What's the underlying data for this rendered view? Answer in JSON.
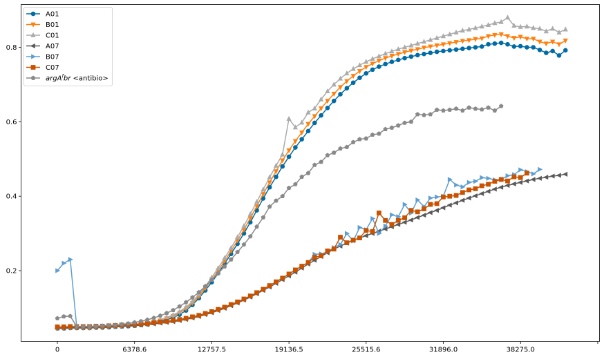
{
  "chart_data": {
    "type": "line",
    "title": "",
    "xlabel": "",
    "ylabel": "",
    "xlim": [
      -3000,
      44800
    ],
    "ylim": [
      0.01,
      0.915
    ],
    "grid": false,
    "legend_placement": "top-left",
    "x_ticks": [
      0,
      6378.6,
      12757.5,
      19136.5,
      25515.6,
      31896.0,
      38275.0
    ],
    "x_tick_labels": [
      "0",
      "6378.6",
      "12757.5",
      "19136.5",
      "25515.6",
      "31896.0",
      "38275.0"
    ],
    "y_ticks": [
      0.2,
      0.4,
      0.6,
      0.8
    ],
    "y_tick_labels": [
      "0.2",
      "0.4",
      "0.6",
      "0.8"
    ],
    "legend_prefix_italic": "argA",
    "legend_prefix_sup": "fbr",
    "series": [
      {
        "name": "A01",
        "color": "#006ba4",
        "marker": "circle",
        "values": [
          0.045,
          0.045,
          0.046,
          0.046,
          0.046,
          0.046,
          0.047,
          0.047,
          0.048,
          0.049,
          0.05,
          0.051,
          0.052,
          0.054,
          0.056,
          0.059,
          0.063,
          0.068,
          0.074,
          0.082,
          0.093,
          0.108,
          0.126,
          0.147,
          0.169,
          0.193,
          0.219,
          0.245,
          0.272,
          0.3,
          0.33,
          0.362,
          0.394,
          0.424,
          0.452,
          0.48,
          0.506,
          0.531,
          0.553,
          0.575,
          0.597,
          0.617,
          0.637,
          0.656,
          0.674,
          0.69,
          0.705,
          0.718,
          0.73,
          0.74,
          0.748,
          0.755,
          0.761,
          0.766,
          0.771,
          0.775,
          0.779,
          0.782,
          0.785,
          0.788,
          0.79,
          0.792,
          0.794,
          0.796,
          0.798,
          0.8,
          0.802,
          0.808,
          0.81,
          0.812,
          0.808,
          0.802,
          0.803,
          0.8,
          0.8,
          0.793,
          0.785,
          0.79,
          0.778,
          0.792
        ]
      },
      {
        "name": "B01",
        "color": "#ff800e",
        "marker": "triangle-down",
        "values": [
          0.046,
          0.046,
          0.047,
          0.047,
          0.047,
          0.047,
          0.048,
          0.048,
          0.049,
          0.05,
          0.051,
          0.053,
          0.054,
          0.056,
          0.059,
          0.062,
          0.066,
          0.072,
          0.078,
          0.087,
          0.098,
          0.113,
          0.131,
          0.153,
          0.176,
          0.2,
          0.226,
          0.253,
          0.281,
          0.31,
          0.341,
          0.373,
          0.406,
          0.437,
          0.467,
          0.496,
          0.523,
          0.548,
          0.571,
          0.594,
          0.615,
          0.636,
          0.656,
          0.675,
          0.693,
          0.709,
          0.723,
          0.736,
          0.747,
          0.756,
          0.764,
          0.771,
          0.777,
          0.782,
          0.787,
          0.791,
          0.795,
          0.799,
          0.802,
          0.805,
          0.808,
          0.811,
          0.814,
          0.817,
          0.819,
          0.822,
          0.824,
          0.83,
          0.833,
          0.835,
          0.83,
          0.825,
          0.828,
          0.823,
          0.823,
          0.815,
          0.81,
          0.815,
          0.808,
          0.818
        ]
      },
      {
        "name": "C01",
        "color": "#ababab",
        "marker": "triangle-up",
        "values": [
          0.047,
          0.047,
          0.048,
          0.048,
          0.048,
          0.048,
          0.049,
          0.049,
          0.05,
          0.051,
          0.052,
          0.054,
          0.056,
          0.058,
          0.061,
          0.064,
          0.068,
          0.074,
          0.081,
          0.09,
          0.102,
          0.117,
          0.136,
          0.158,
          0.182,
          0.207,
          0.234,
          0.261,
          0.29,
          0.32,
          0.352,
          0.385,
          0.418,
          0.451,
          0.482,
          0.512,
          0.608,
          0.585,
          0.598,
          0.625,
          0.636,
          0.66,
          0.682,
          0.7,
          0.716,
          0.73,
          0.742,
          0.752,
          0.761,
          0.769,
          0.776,
          0.783,
          0.789,
          0.795,
          0.8,
          0.805,
          0.81,
          0.815,
          0.82,
          0.825,
          0.83,
          0.835,
          0.84,
          0.845,
          0.848,
          0.852,
          0.856,
          0.86,
          0.865,
          0.868,
          0.88,
          0.858,
          0.855,
          0.856,
          0.852,
          0.85,
          0.843,
          0.85,
          0.84,
          0.848
        ]
      },
      {
        "name": "A07",
        "color": "#595959",
        "marker": "triangle-left",
        "values": [
          0.046,
          0.046,
          0.047,
          0.047,
          0.047,
          0.048,
          0.048,
          0.049,
          0.049,
          0.05,
          0.051,
          0.052,
          0.053,
          0.054,
          0.055,
          0.057,
          0.059,
          0.061,
          0.063,
          0.066,
          0.069,
          0.073,
          0.077,
          0.082,
          0.087,
          0.093,
          0.099,
          0.106,
          0.113,
          0.121,
          0.129,
          0.138,
          0.147,
          0.156,
          0.166,
          0.176,
          0.186,
          0.196,
          0.207,
          0.218,
          0.228,
          0.238,
          0.248,
          0.258,
          0.266,
          0.274,
          0.281,
          0.288,
          0.294,
          0.3,
          0.306,
          0.312,
          0.318,
          0.324,
          0.33,
          0.336,
          0.343,
          0.349,
          0.356,
          0.362,
          0.369,
          0.376,
          0.382,
          0.389,
          0.395,
          0.401,
          0.407,
          0.413,
          0.419,
          0.424,
          0.429,
          0.433,
          0.437,
          0.441,
          0.445,
          0.448,
          0.451,
          0.454,
          0.456,
          0.459
        ]
      },
      {
        "name": "B07",
        "color": "#5f9ed1",
        "marker": "triangle-right",
        "values": [
          0.2,
          0.22,
          0.23,
          0.05,
          0.05,
          0.05,
          0.051,
          0.051,
          0.052,
          0.053,
          0.054,
          0.055,
          0.056,
          0.057,
          0.058,
          0.06,
          0.062,
          0.064,
          0.066,
          0.069,
          0.072,
          0.076,
          0.08,
          0.085,
          0.09,
          0.096,
          0.102,
          0.109,
          0.116,
          0.124,
          0.132,
          0.141,
          0.15,
          0.16,
          0.17,
          0.18,
          0.191,
          0.202,
          0.212,
          0.222,
          0.244,
          0.245,
          0.25,
          0.262,
          0.27,
          0.3,
          0.28,
          0.316,
          0.31,
          0.34,
          0.3,
          0.32,
          0.35,
          0.345,
          0.378,
          0.355,
          0.39,
          0.372,
          0.395,
          0.398,
          0.4,
          0.445,
          0.43,
          0.425,
          0.437,
          0.44,
          0.45,
          0.448,
          0.444,
          0.445,
          0.455,
          0.458,
          0.471,
          0.466,
          0.46,
          0.472
        ]
      },
      {
        "name": "C07",
        "color": "#c85200",
        "marker": "square",
        "values": [
          0.049,
          0.049,
          0.05,
          0.05,
          0.05,
          0.05,
          0.051,
          0.051,
          0.052,
          0.053,
          0.054,
          0.055,
          0.056,
          0.057,
          0.058,
          0.06,
          0.062,
          0.064,
          0.066,
          0.069,
          0.072,
          0.076,
          0.08,
          0.085,
          0.09,
          0.096,
          0.102,
          0.109,
          0.116,
          0.124,
          0.132,
          0.141,
          0.15,
          0.16,
          0.17,
          0.18,
          0.191,
          0.202,
          0.212,
          0.222,
          0.236,
          0.24,
          0.253,
          0.258,
          0.29,
          0.275,
          0.282,
          0.288,
          0.308,
          0.305,
          0.355,
          0.335,
          0.324,
          0.335,
          0.342,
          0.362,
          0.358,
          0.366,
          0.378,
          0.38,
          0.398,
          0.4,
          0.402,
          0.41,
          0.417,
          0.42,
          0.428,
          0.432,
          0.44,
          0.445,
          0.441,
          0.452,
          0.45,
          0.462
        ]
      },
      {
        "name": " <antibio>",
        "color": "#898989",
        "marker": "pentagon",
        "values": [
          0.072,
          0.077,
          0.078,
          0.05,
          0.05,
          0.05,
          0.051,
          0.052,
          0.053,
          0.054,
          0.056,
          0.058,
          0.061,
          0.064,
          0.068,
          0.073,
          0.079,
          0.086,
          0.094,
          0.104,
          0.115,
          0.128,
          0.142,
          0.158,
          0.175,
          0.193,
          0.211,
          0.23,
          0.25,
          0.27,
          0.292,
          0.318,
          0.343,
          0.372,
          0.388,
          0.4,
          0.422,
          0.432,
          0.452,
          0.462,
          0.484,
          0.492,
          0.51,
          0.517,
          0.528,
          0.532,
          0.545,
          0.553,
          0.555,
          0.565,
          0.568,
          0.58,
          0.584,
          0.59,
          0.597,
          0.6,
          0.62,
          0.618,
          0.62,
          0.632,
          0.63,
          0.632,
          0.635,
          0.63,
          0.638,
          0.635,
          0.633,
          0.638,
          0.63,
          0.642
        ]
      }
    ]
  }
}
